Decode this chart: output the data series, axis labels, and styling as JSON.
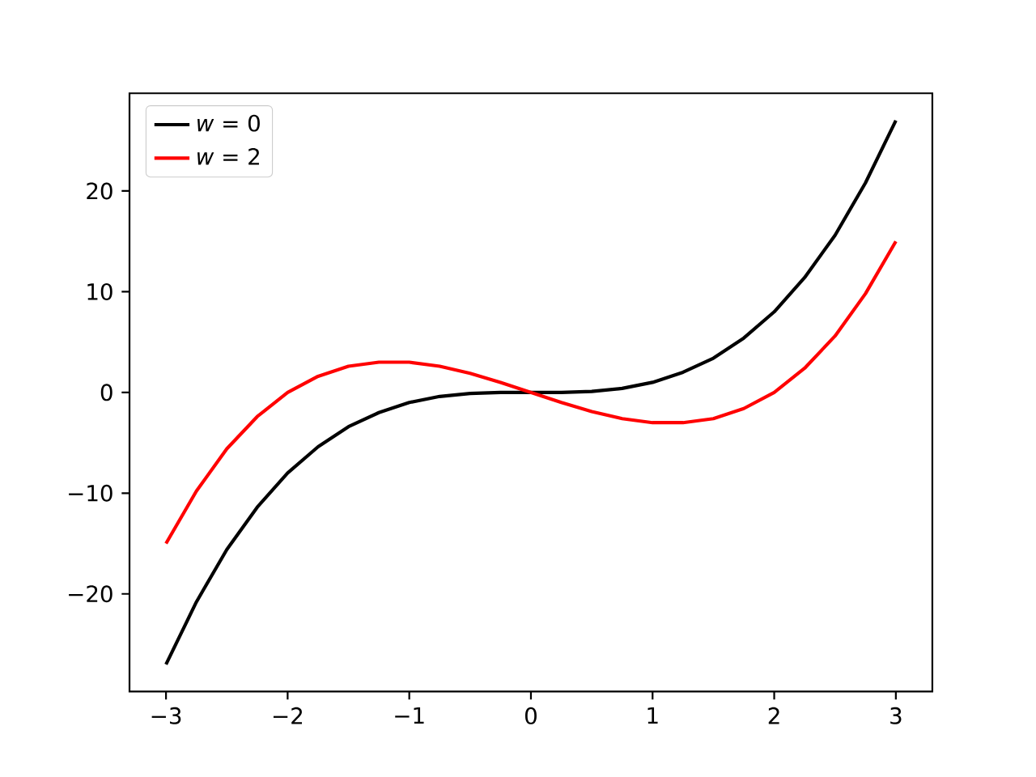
{
  "chart_data": {
    "type": "line",
    "x": [
      -3,
      -2.75,
      -2.5,
      -2.25,
      -2,
      -1.75,
      -1.5,
      -1.25,
      -1,
      -0.75,
      -0.5,
      -0.25,
      0,
      0.25,
      0.5,
      0.75,
      1,
      1.25,
      1.5,
      1.75,
      2,
      2.25,
      2.5,
      2.75,
      3
    ],
    "series": [
      {
        "name": "*w* = 0",
        "color": "#000000",
        "values": [
          -27,
          -20.8,
          -15.6,
          -11.4,
          -8,
          -5.4,
          -3.4,
          -2.0,
          -1,
          -0.4,
          -0.1,
          0,
          0,
          0,
          0.1,
          0.4,
          1,
          2.0,
          3.4,
          5.4,
          8,
          11.4,
          15.6,
          20.8,
          27
        ]
      },
      {
        "name": "*w* = 2",
        "color": "#ff0000",
        "values": [
          -15,
          -9.8,
          -5.6,
          -2.4,
          0,
          1.6,
          2.6,
          3.0,
          3,
          2.6,
          1.9,
          1.0,
          0,
          -1.0,
          -1.9,
          -2.6,
          -3,
          -3.0,
          -2.6,
          -1.6,
          0,
          2.4,
          5.6,
          9.8,
          15
        ]
      }
    ],
    "xlim": [
      -3.3,
      3.3
    ],
    "ylim": [
      -29.7,
      29.7
    ],
    "xticks": [
      {
        "value": -3,
        "label": "−3"
      },
      {
        "value": -2,
        "label": "−2"
      },
      {
        "value": -1,
        "label": "−1"
      },
      0,
      1,
      2,
      3
    ],
    "yticks": [
      {
        "value": -20,
        "label": "−20"
      },
      {
        "value": -10,
        "label": "−10"
      },
      0,
      10,
      20
    ],
    "legend": "top left"
  }
}
